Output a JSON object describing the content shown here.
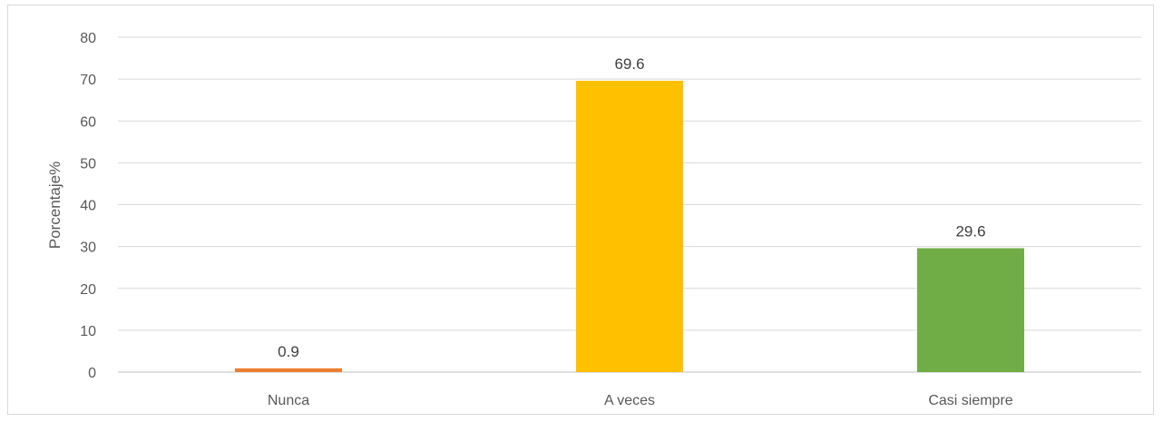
{
  "chart_data": {
    "type": "bar",
    "categories": [
      "Nunca",
      "A veces",
      "Casi siempre"
    ],
    "values": [
      0.9,
      69.6,
      29.6
    ],
    "value_labels": [
      "0.9",
      "69.6",
      "29.6"
    ],
    "colors": [
      "#ED7D31",
      "#FFC000",
      "#70AD47"
    ],
    "title": "",
    "xlabel": "",
    "ylabel": "Porcentaje%",
    "ylim": [
      0,
      80
    ],
    "yticks": [
      0,
      10,
      20,
      30,
      40,
      50,
      60,
      70,
      80
    ],
    "grid": true,
    "legend": "none",
    "gridline_color": "#d9d9d9",
    "axis_color": "#bfbfbf"
  }
}
